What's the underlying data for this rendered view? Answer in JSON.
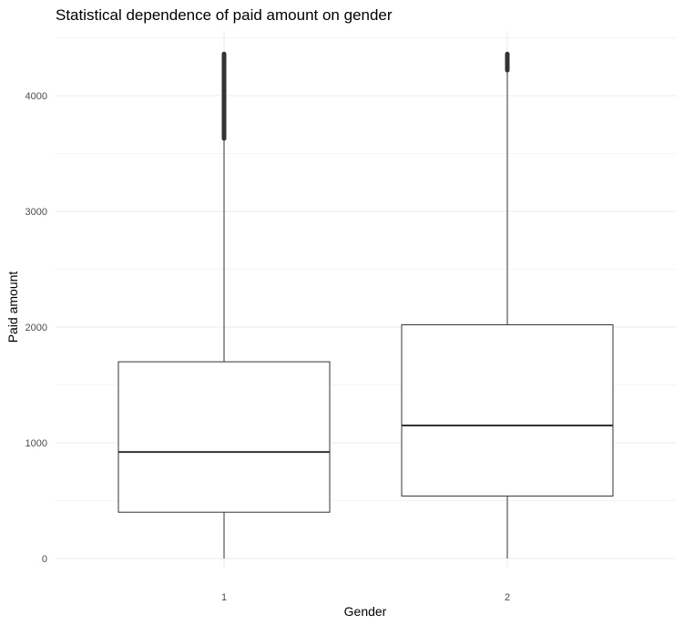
{
  "chart_data": {
    "type": "boxplot",
    "title": "Statistical dependence of paid amount on gender",
    "xlabel": "Gender",
    "ylabel": "Paid amount",
    "categories": [
      "1",
      "2"
    ],
    "y_ticks": [
      0,
      1000,
      2000,
      3000,
      4000
    ],
    "ylim": [
      -80,
      4560
    ],
    "grid": true,
    "legend": "none",
    "colors": {
      "box": "#333333",
      "grid": "#ebebeb",
      "text": "#4d4d4d"
    },
    "boxes": [
      {
        "category": "1",
        "whisker_low": 0,
        "q1": 400,
        "median": 920,
        "q3": 1700,
        "whisker_high": 3630,
        "outliers_range": [
          3630,
          4360
        ]
      },
      {
        "category": "2",
        "whisker_low": 0,
        "q1": 540,
        "median": 1150,
        "q3": 2020,
        "whisker_high": 4220,
        "outliers_range": [
          4220,
          4360
        ]
      }
    ]
  }
}
